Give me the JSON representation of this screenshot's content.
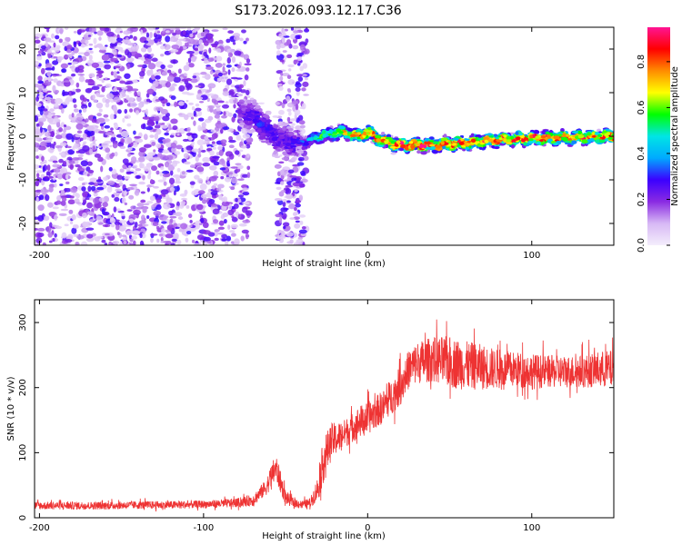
{
  "chart_data": [
    {
      "type": "heatmap",
      "title": "S173.2026.093.12.17.C36",
      "xlabel": "Height of straight line (km)",
      "ylabel": "Frequency (Hz)",
      "xlim": [
        -203,
        150
      ],
      "ylim": [
        -25,
        25
      ],
      "xticks": [
        -200,
        -100,
        0,
        100
      ],
      "xtick_labels": [
        "-200",
        "-100",
        "0",
        "100"
      ],
      "yticks": [
        -20,
        -10,
        0,
        10,
        20
      ],
      "ytick_labels": [
        "-20",
        "-10",
        "0",
        "10",
        "20"
      ],
      "colorbar": {
        "label": "Normalized spectral amplitude",
        "range": [
          0,
          0.95
        ],
        "ticks": [
          0.0,
          0.2,
          0.4,
          0.6,
          0.8
        ],
        "tick_labels": [
          "0.0",
          "0.2",
          "0.4",
          "0.6",
          "0.8"
        ],
        "colors": [
          "#f4eefc",
          "#d7b8f5",
          "#8a2be2",
          "#3b00ff",
          "#00aaff",
          "#00e5e5",
          "#00ff00",
          "#ffff00",
          "#ff8c00",
          "#ff0000",
          "#ff1493"
        ]
      },
      "noise_region": {
        "x_range": [
          -203,
          -37
        ],
        "gap_x_range": [
          -72,
          -55
        ],
        "amplitude_range": [
          0.05,
          0.3
        ]
      },
      "ridge": [
        {
          "x": -78,
          "f": 6,
          "a": 0.2
        },
        {
          "x": -68,
          "f": 4,
          "a": 0.3
        },
        {
          "x": -60,
          "f": 1,
          "a": 0.3
        },
        {
          "x": -52,
          "f": -1,
          "a": 0.25
        },
        {
          "x": -38,
          "f": -1.5,
          "a": 0.35
        },
        {
          "x": -30,
          "f": 0,
          "a": 0.55
        },
        {
          "x": -15,
          "f": 1,
          "a": 0.7
        },
        {
          "x": -5,
          "f": 0,
          "a": 0.8
        },
        {
          "x": 0,
          "f": 1,
          "a": 0.85
        },
        {
          "x": 8,
          "f": -1,
          "a": 0.85
        },
        {
          "x": 20,
          "f": -2,
          "a": 0.9
        },
        {
          "x": 40,
          "f": -2,
          "a": 0.9
        },
        {
          "x": 60,
          "f": -1.5,
          "a": 0.85
        },
        {
          "x": 80,
          "f": -0.8,
          "a": 0.85
        },
        {
          "x": 100,
          "f": -0.5,
          "a": 0.85
        },
        {
          "x": 120,
          "f": -0.3,
          "a": 0.85
        },
        {
          "x": 150,
          "f": 0,
          "a": 0.85
        }
      ]
    },
    {
      "type": "line",
      "xlabel": "Height of straight line (km)",
      "ylabel": "SNR (10 * v/v)",
      "xlim": [
        -203,
        150
      ],
      "ylim": [
        0,
        335
      ],
      "xticks": [
        -200,
        -100,
        0,
        100
      ],
      "xtick_labels": [
        "-200",
        "-100",
        "0",
        "100"
      ],
      "yticks": [
        0,
        100,
        200,
        300
      ],
      "ytick_labels": [
        "0",
        "100",
        "200",
        "300"
      ],
      "color": "#ee3333",
      "series": [
        {
          "name": "SNR",
          "x": [
            -203,
            -180,
            -160,
            -140,
            -120,
            -100,
            -80,
            -70,
            -62,
            -56,
            -50,
            -45,
            -40,
            -35,
            -30,
            -27,
            -22,
            -15,
            -10,
            -5,
            0,
            5,
            10,
            15,
            20,
            25,
            30,
            40,
            50,
            60,
            70,
            80,
            90,
            100,
            110,
            120,
            130,
            140,
            150
          ],
          "y": [
            18,
            18,
            18,
            19,
            19,
            20,
            22,
            26,
            45,
            75,
            30,
            22,
            20,
            22,
            45,
            85,
            115,
            125,
            135,
            145,
            150,
            160,
            170,
            185,
            200,
            225,
            235,
            240,
            235,
            230,
            228,
            225,
            225,
            222,
            222,
            222,
            222,
            225,
            225
          ],
          "spread": [
            12,
            12,
            12,
            12,
            12,
            12,
            14,
            18,
            25,
            45,
            22,
            14,
            12,
            15,
            40,
            70,
            55,
            45,
            45,
            50,
            50,
            50,
            50,
            55,
            60,
            60,
            65,
            70,
            80,
            75,
            70,
            60,
            55,
            55,
            50,
            50,
            50,
            55,
            60
          ]
        }
      ]
    }
  ]
}
